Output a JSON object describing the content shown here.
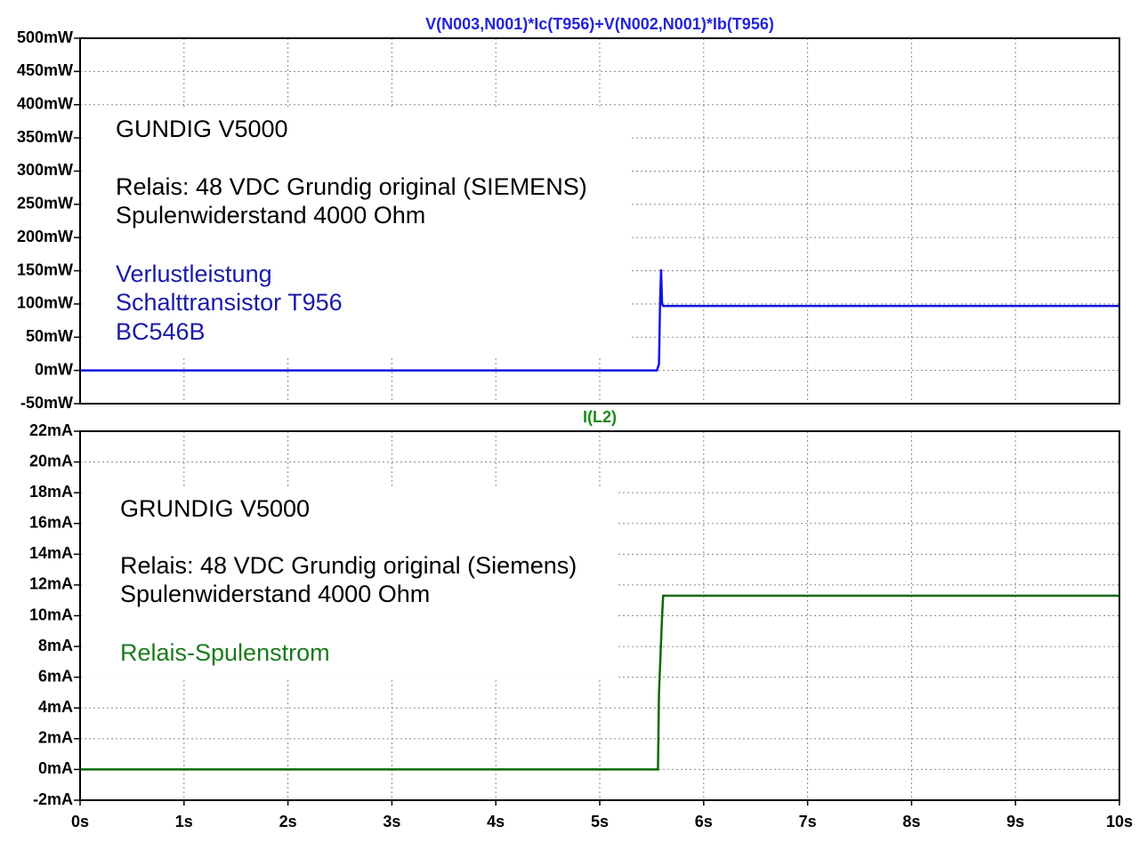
{
  "chart_data": [
    {
      "type": "line",
      "title": "V(N003,N001)*Ic(T956)+V(N002,N001)*Ib(T956)",
      "title_color": "#2424d8",
      "x": [
        0,
        5.55,
        5.57,
        5.58,
        5.59,
        5.6,
        5.61,
        10
      ],
      "series": [
        {
          "name": "V(N003,N001)*Ic(T956)+V(N002,N001)*Ib(T956)",
          "color": "#1414e0",
          "values": [
            0,
            0,
            10,
            100,
            152,
            100,
            97,
            97
          ]
        }
      ],
      "xlim": [
        0,
        10
      ],
      "xticks": [
        0,
        1,
        2,
        3,
        4,
        5,
        6,
        7,
        8,
        9,
        10
      ],
      "ylim": [
        -50,
        500
      ],
      "yticks": [
        {
          "value": -50,
          "label": "-50mW"
        },
        {
          "value": 0,
          "label": "0mW"
        },
        {
          "value": 50,
          "label": "50mW"
        },
        {
          "value": 100,
          "label": "100mW"
        },
        {
          "value": 150,
          "label": "150mW"
        },
        {
          "value": 200,
          "label": "200mW"
        },
        {
          "value": 250,
          "label": "250mW"
        },
        {
          "value": 300,
          "label": "300mW"
        },
        {
          "value": 350,
          "label": "350mW"
        },
        {
          "value": 400,
          "label": "400mW"
        },
        {
          "value": 450,
          "label": "450mW"
        },
        {
          "value": 500,
          "label": "500mW"
        }
      ],
      "grid": true,
      "annotations": [
        {
          "text": "GUNDIG V5000",
          "color": "#000000"
        },
        {
          "text": "Relais: 48 VDC Grundig original (SIEMENS)",
          "color": "#000000"
        },
        {
          "text": "Spulenwiderstand 4000 Ohm",
          "color": "#000000"
        },
        {
          "text": "Verlustleistung",
          "color": "#1a1aa8"
        },
        {
          "text": "Schalttransistor T956",
          "color": "#1a1aa8"
        },
        {
          "text": "BC546B",
          "color": "#1a1aa8"
        }
      ]
    },
    {
      "type": "line",
      "title": "I(L2)",
      "title_color": "#1a8a1a",
      "x": [
        0,
        5.56,
        5.57,
        5.6,
        5.61,
        10
      ],
      "series": [
        {
          "name": "I(L2)",
          "color": "#0a6a0a",
          "values": [
            0,
            0,
            5,
            10,
            11.3,
            11.3
          ]
        }
      ],
      "xlim": [
        0,
        10
      ],
      "xticks": [
        {
          "value": 0,
          "label": "0s"
        },
        {
          "value": 1,
          "label": "1s"
        },
        {
          "value": 2,
          "label": "2s"
        },
        {
          "value": 3,
          "label": "3s"
        },
        {
          "value": 4,
          "label": "4s"
        },
        {
          "value": 5,
          "label": "5s"
        },
        {
          "value": 6,
          "label": "6s"
        },
        {
          "value": 7,
          "label": "7s"
        },
        {
          "value": 8,
          "label": "8s"
        },
        {
          "value": 9,
          "label": "9s"
        },
        {
          "value": 10,
          "label": "10s"
        }
      ],
      "ylim": [
        -2,
        22
      ],
      "yticks": [
        {
          "value": -2,
          "label": "-2mA"
        },
        {
          "value": 0,
          "label": "0mA"
        },
        {
          "value": 2,
          "label": "2mA"
        },
        {
          "value": 4,
          "label": "4mA"
        },
        {
          "value": 6,
          "label": "6mA"
        },
        {
          "value": 8,
          "label": "8mA"
        },
        {
          "value": 10,
          "label": "10mA"
        },
        {
          "value": 12,
          "label": "12mA"
        },
        {
          "value": 14,
          "label": "14mA"
        },
        {
          "value": 16,
          "label": "16mA"
        },
        {
          "value": 18,
          "label": "18mA"
        },
        {
          "value": 20,
          "label": "20mA"
        },
        {
          "value": 22,
          "label": "22mA"
        }
      ],
      "grid": true,
      "annotations": [
        {
          "text": "GRUNDIG V5000",
          "color": "#000000"
        },
        {
          "text": "Relais: 48 VDC Grundig original (Siemens)",
          "color": "#000000"
        },
        {
          "text": "Spulenwiderstand 4000 Ohm",
          "color": "#000000"
        },
        {
          "text": "Relais-Spulenstrom",
          "color": "#1a7a1a"
        }
      ]
    }
  ]
}
